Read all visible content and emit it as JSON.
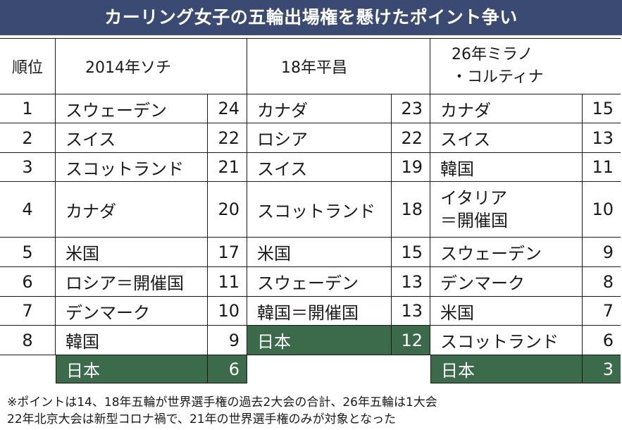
{
  "title": "カーリング女子の五輪出場権を懸けたポイント争い",
  "headers": {
    "rank": "順位",
    "col1": "2014年ソチ",
    "col2": "18年平昌",
    "col3_line1": "26年ミラノ",
    "col3_line2": "・コルティナ"
  },
  "rows": [
    {
      "rank": "1",
      "c1": "スウェーデン",
      "p1": "24",
      "c2": "カナダ",
      "p2": "23",
      "c3": "カナダ",
      "p3": "15"
    },
    {
      "rank": "2",
      "c1": "スイス",
      "p1": "22",
      "c2": "ロシア",
      "p2": "22",
      "c3": "スイス",
      "p3": "13"
    },
    {
      "rank": "3",
      "c1": "スコットランド",
      "p1": "21",
      "c2": "スイス",
      "p2": "19",
      "c3": "韓国",
      "p3": "11"
    },
    {
      "rank": "4",
      "c1": "カナダ",
      "p1": "20",
      "c2": "スコットランド",
      "p2": "18",
      "c3_line1": "イタリア",
      "c3_line2": "＝開催国",
      "p3": "10"
    },
    {
      "rank": "5",
      "c1": "米国",
      "p1": "17",
      "c2": "米国",
      "p2": "15",
      "c3": "スウェーデン",
      "p3": "9"
    },
    {
      "rank": "6",
      "c1": "ロシア＝開催国",
      "p1": "11",
      "c2": "スウェーデン",
      "p2": "13",
      "c3": "デンマーク",
      "p3": "8"
    },
    {
      "rank": "7",
      "c1": "デンマーク",
      "p1": "10",
      "c2": "韓国＝開催国",
      "p2": "13",
      "c3": "米国",
      "p3": "7"
    },
    {
      "rank": "8",
      "c1": "韓国",
      "p1": "9",
      "c2": "日本",
      "p2": "12",
      "c3": "スコットランド",
      "p3": "6"
    }
  ],
  "extra_row": {
    "c1": "日本",
    "p1": "6",
    "c3": "日本",
    "p3": "3"
  },
  "footnotes": [
    "※ポイントは14、18年五輪が世界選手権の過去2大会の合計、26年五輪は1大会",
    "22年北京大会は新型コロナ禍で、21年の世界選手権のみが対象となった"
  ],
  "colors": {
    "title_background": "#3a4a73",
    "japan_highlight": "#3b6b4a"
  }
}
